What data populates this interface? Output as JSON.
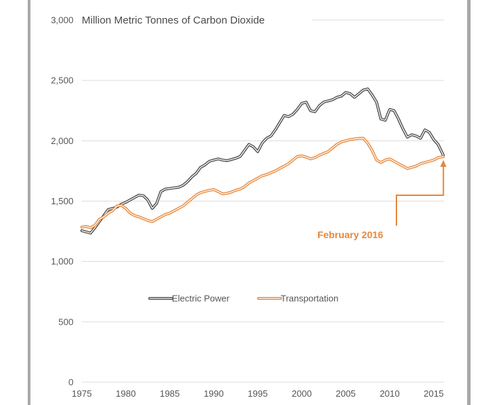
{
  "chart_data": {
    "type": "line",
    "title": "Million Metric Tonnes of Carbon Dioxide",
    "xlabel": "",
    "ylabel": "",
    "xlim": [
      1975,
      2016.2
    ],
    "ylim": [
      0,
      3000
    ],
    "x_ticks": [
      "1975",
      "1980",
      "1985",
      "1990",
      "1995",
      "2000",
      "2005",
      "2010",
      "2015"
    ],
    "y_ticks": [
      "0",
      "500",
      "1,000",
      "1,500",
      "2,000",
      "2,500",
      "3,000"
    ],
    "grid": "horizontal",
    "legend": "center",
    "series": [
      {
        "name": "Electric Power",
        "color": "#4d4d4d",
        "x": [
          1975,
          1975.5,
          1976,
          1976.5,
          1977,
          1977.5,
          1978,
          1978.5,
          1979,
          1979.5,
          1980,
          1980.5,
          1981,
          1981.5,
          1982,
          1982.5,
          1983,
          1983.5,
          1984,
          1984.5,
          1985,
          1985.5,
          1986,
          1986.5,
          1987,
          1987.5,
          1988,
          1988.5,
          1989,
          1989.5,
          1990,
          1990.5,
          1991,
          1991.5,
          1992,
          1992.5,
          1993,
          1993.5,
          1994,
          1994.5,
          1995,
          1995.5,
          1996,
          1996.5,
          1997,
          1997.5,
          1998,
          1998.5,
          1999,
          1999.5,
          2000,
          2000.5,
          2001,
          2001.5,
          2002,
          2002.5,
          2003,
          2003.5,
          2004,
          2004.5,
          2005,
          2005.5,
          2006,
          2006.5,
          2007,
          2007.5,
          2008,
          2008.5,
          2009,
          2009.5,
          2010,
          2010.5,
          2011,
          2011.5,
          2012,
          2012.5,
          2013,
          2013.5,
          2014,
          2014.5,
          2015,
          2015.5,
          2016.1
        ],
        "values": [
          1255,
          1245,
          1235,
          1280,
          1330,
          1380,
          1430,
          1440,
          1450,
          1475,
          1490,
          1510,
          1530,
          1550,
          1545,
          1510,
          1440,
          1480,
          1580,
          1600,
          1605,
          1610,
          1615,
          1630,
          1660,
          1700,
          1730,
          1780,
          1800,
          1830,
          1840,
          1850,
          1840,
          1835,
          1845,
          1855,
          1870,
          1920,
          1970,
          1950,
          1910,
          1980,
          2020,
          2040,
          2090,
          2150,
          2210,
          2200,
          2220,
          2260,
          2310,
          2320,
          2250,
          2240,
          2290,
          2320,
          2330,
          2340,
          2360,
          2370,
          2400,
          2390,
          2360,
          2390,
          2420,
          2430,
          2380,
          2320,
          2180,
          2170,
          2260,
          2250,
          2180,
          2100,
          2030,
          2050,
          2040,
          2020,
          2090,
          2070,
          2010,
          1970,
          1880
        ]
      },
      {
        "name": "Transportation",
        "color": "#e8873a",
        "x": [
          1975,
          1975.5,
          1976,
          1976.5,
          1977,
          1977.5,
          1978,
          1978.5,
          1979,
          1979.5,
          1980,
          1980.5,
          1981,
          1981.5,
          1982,
          1982.5,
          1983,
          1983.5,
          1984,
          1984.5,
          1985,
          1985.5,
          1986,
          1986.5,
          1987,
          1987.5,
          1988,
          1988.5,
          1989,
          1989.5,
          1990,
          1990.5,
          1991,
          1991.5,
          1992,
          1992.5,
          1993,
          1993.5,
          1994,
          1994.5,
          1995,
          1995.5,
          1996,
          1996.5,
          1997,
          1997.5,
          1998,
          1998.5,
          1999,
          1999.5,
          2000,
          2000.5,
          2001,
          2001.5,
          2002,
          2002.5,
          2003,
          2003.5,
          2004,
          2004.5,
          2005,
          2005.5,
          2006,
          2006.5,
          2007,
          2007.5,
          2008,
          2008.5,
          2009,
          2009.5,
          2010,
          2010.5,
          2011,
          2011.5,
          2012,
          2012.5,
          2013,
          2013.5,
          2014,
          2014.5,
          2015,
          2015.5,
          2016.1
        ],
        "values": [
          1285,
          1290,
          1280,
          1300,
          1350,
          1370,
          1400,
          1420,
          1460,
          1465,
          1440,
          1400,
          1380,
          1370,
          1355,
          1340,
          1330,
          1350,
          1370,
          1390,
          1400,
          1420,
          1440,
          1460,
          1490,
          1520,
          1550,
          1570,
          1580,
          1590,
          1595,
          1580,
          1560,
          1565,
          1575,
          1590,
          1600,
          1620,
          1650,
          1670,
          1690,
          1710,
          1720,
          1735,
          1750,
          1770,
          1790,
          1810,
          1840,
          1870,
          1875,
          1865,
          1850,
          1860,
          1880,
          1895,
          1910,
          1940,
          1970,
          1990,
          2000,
          2010,
          2015,
          2020,
          2020,
          1980,
          1920,
          1840,
          1820,
          1840,
          1850,
          1830,
          1810,
          1790,
          1770,
          1780,
          1790,
          1810,
          1820,
          1830,
          1840,
          1860,
          1870
        ]
      }
    ],
    "annotations": [
      {
        "text": "February 2016",
        "x": 2016.1,
        "y": 1870,
        "color": "#e8873a"
      }
    ]
  }
}
